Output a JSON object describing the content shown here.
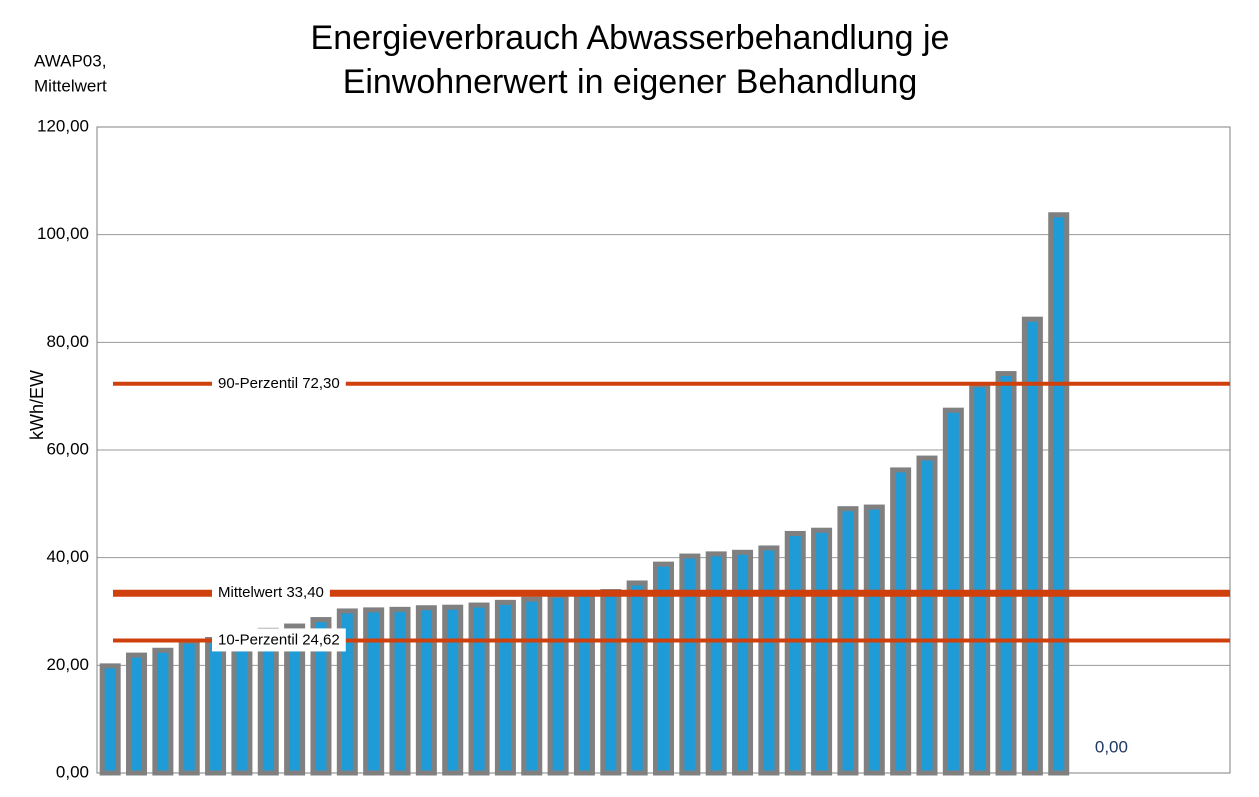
{
  "chart_data": {
    "type": "bar",
    "title": [
      "Energieverbrauch Abwasserbehandlung je",
      "Einwohnerwert in eigener Behandlung"
    ],
    "corner_label": [
      "AWAP03,",
      "Mittelwert"
    ],
    "y_label": "kWh/EW",
    "categories": [
      null,
      null,
      null,
      null,
      null,
      null,
      null,
      null,
      null,
      null,
      null,
      null,
      null,
      null,
      null,
      null,
      null,
      null,
      null,
      null,
      null,
      null,
      null,
      null,
      null,
      null,
      null,
      null,
      null,
      null,
      null,
      null,
      null,
      null,
      null,
      null,
      null,
      null,
      null,
      null,
      null,
      null,
      null
    ],
    "values": [
      19.9,
      21.9,
      22.8,
      24.5,
      24.8,
      25.5,
      26.5,
      27.3,
      28.5,
      30.1,
      30.3,
      30.4,
      30.7,
      30.8,
      31.2,
      31.7,
      32.3,
      33.0,
      33.4,
      33.7,
      35.3,
      38.8,
      40.3,
      40.7,
      41.0,
      41.8,
      44.5,
      45.1,
      49.1,
      49.4,
      56.3,
      58.5,
      67.4,
      72.1,
      74.2,
      84.3,
      103.7,
      null,
      0,
      null,
      null,
      null,
      null
    ],
    "value_labels": [
      null,
      null,
      null,
      null,
      null,
      null,
      null,
      null,
      null,
      null,
      null,
      null,
      null,
      null,
      null,
      null,
      null,
      null,
      null,
      null,
      null,
      null,
      null,
      null,
      null,
      null,
      null,
      null,
      null,
      null,
      null,
      null,
      null,
      null,
      null,
      null,
      null,
      null,
      "0,00",
      null,
      null,
      null,
      null
    ],
    "color": "#1f9bd7",
    "edge_color": "#808080",
    "ylim": [
      0,
      120
    ],
    "yticks": [
      {
        "value": 0,
        "label": "0,00"
      },
      {
        "value": 20,
        "label": "20,00"
      },
      {
        "value": 40,
        "label": "40,00"
      },
      {
        "value": 60,
        "label": "60,00"
      },
      {
        "value": 80,
        "label": "80,00"
      },
      {
        "value": 100,
        "label": "100,00"
      },
      {
        "value": 120,
        "label": "120,00"
      }
    ],
    "grid": true,
    "reference_lines": [
      {
        "label": "90-Perzentil 72,30",
        "value": 72.3
      },
      {
        "label": "Mittelwert 33,40",
        "value": 33.4
      },
      {
        "label": "10-Perzentil 24,62",
        "value": 24.62
      }
    ],
    "reference_color": "#d0400c"
  }
}
